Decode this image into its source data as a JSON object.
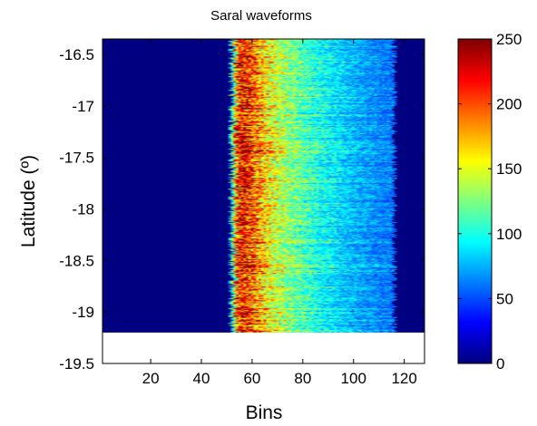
{
  "chart_data": {
    "type": "heatmap",
    "title": "Saral waveforms",
    "xlabel": "Bins",
    "ylabel": "Latitude (º)",
    "xlim": [
      1,
      128
    ],
    "ylim": [
      -19.5,
      -16.35
    ],
    "data_lat_range": [
      -19.2,
      -16.35
    ],
    "x_ticks": [
      20,
      40,
      60,
      80,
      100,
      120
    ],
    "x_tick_labels": [
      "20",
      "40",
      "60",
      "80",
      "100",
      "120"
    ],
    "y_ticks": [
      -16.5,
      -17,
      -17.5,
      -18,
      -18.5,
      -19,
      -19.5
    ],
    "y_tick_labels": [
      "-16.5",
      "-17",
      "-17.5",
      "-18",
      "-18.5",
      "-19",
      "-19.5"
    ],
    "colorbar": {
      "colormap": "jet",
      "range": [
        0,
        250
      ],
      "ticks": [
        0,
        50,
        100,
        150,
        200,
        250
      ],
      "tick_labels": [
        "0",
        "50",
        "100",
        "150",
        "200",
        "250"
      ]
    },
    "waveform_profile": {
      "description": "Power per bin; near zero before leading edge, peak at leading edge, decaying trailing edge, near zero after bin ~117",
      "bins": [
        1,
        51,
        52,
        53,
        54,
        56,
        58,
        60,
        62,
        65,
        70,
        75,
        80,
        85,
        90,
        95,
        100,
        105,
        110,
        116,
        117,
        128
      ],
      "power": [
        0,
        0,
        90,
        150,
        210,
        225,
        215,
        200,
        185,
        165,
        145,
        128,
        115,
        103,
        94,
        86,
        78,
        72,
        66,
        62,
        0,
        0
      ]
    }
  },
  "colors": {
    "background": "#ffffff",
    "no_data": "#ffffff"
  }
}
